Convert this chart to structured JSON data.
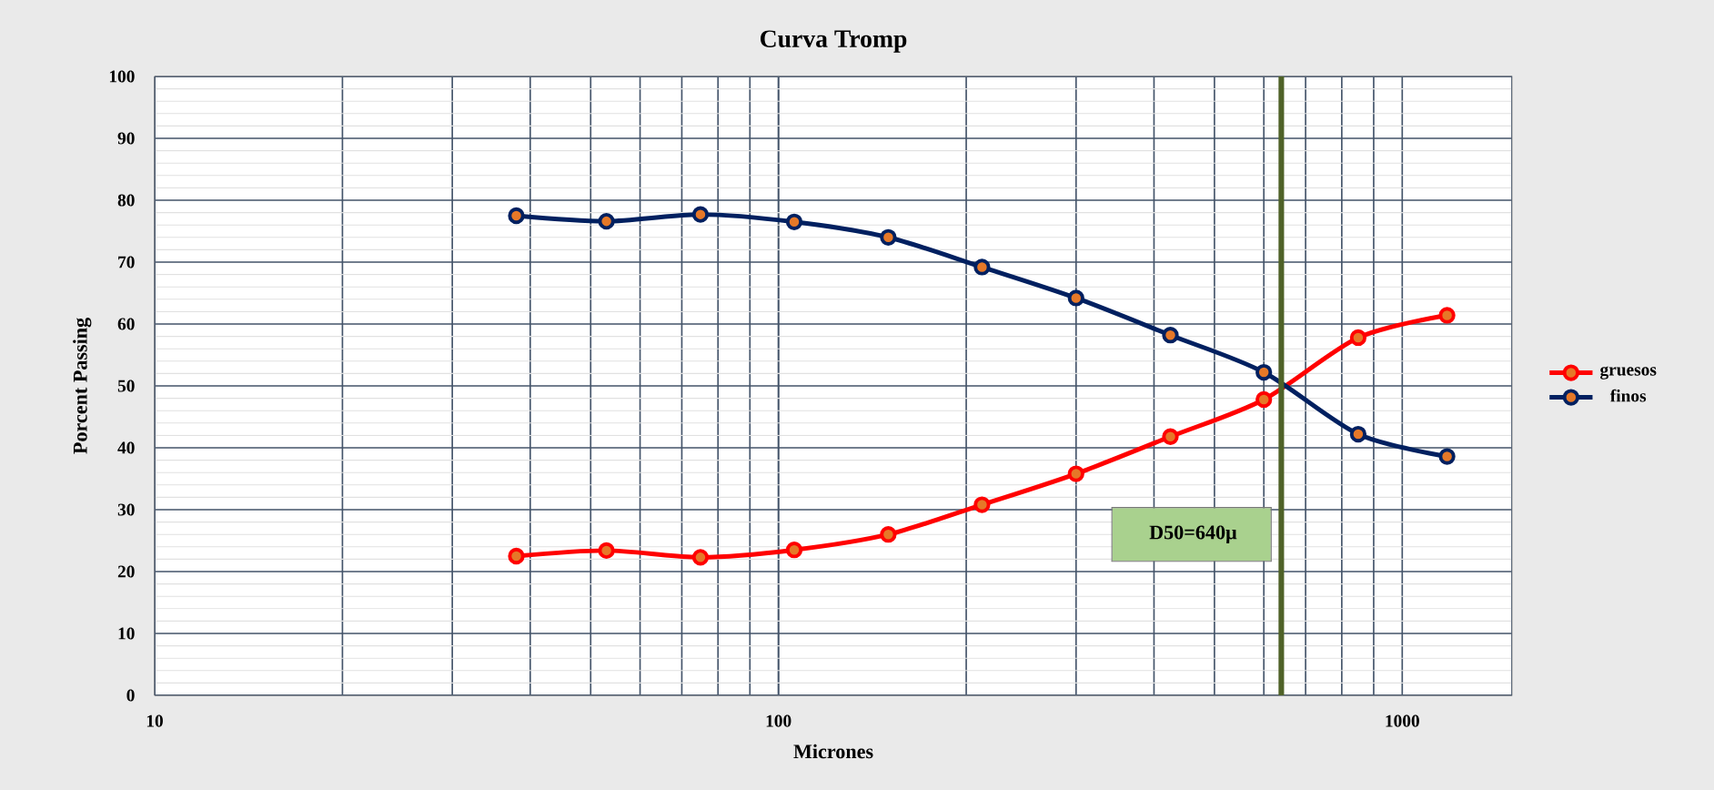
{
  "chart_data": {
    "type": "line",
    "title": "Curva Tromp",
    "xlabel": "Micrones",
    "ylabel": "Porcent Passing",
    "x": [
      38,
      53,
      75,
      106,
      150,
      212,
      300,
      425,
      600,
      850,
      1180
    ],
    "series": [
      {
        "name": "gruesos",
        "color": "#ff0000",
        "values": [
          22.5,
          23.4,
          22.3,
          23.5,
          26,
          30.8,
          35.8,
          41.8,
          47.8,
          57.8,
          61.4
        ]
      },
      {
        "name": "finos",
        "color": "#002060",
        "values": [
          77.5,
          76.6,
          77.7,
          76.5,
          74,
          69.2,
          64.2,
          58.2,
          52.2,
          42.2,
          38.6
        ]
      }
    ],
    "log": "x",
    "xlim": [
      10,
      1500
    ],
    "ylim": [
      0,
      100
    ],
    "xticks": [
      10,
      100,
      1000
    ],
    "yticks": [
      0,
      10,
      20,
      30,
      40,
      50,
      60,
      70,
      80,
      90,
      100
    ],
    "grid": true,
    "legend": "right",
    "marker": "circle",
    "line_style": "solid",
    "ref_lines": [
      {
        "axis": "x",
        "value": 640,
        "label": "D50=640μ",
        "color": "#4f6228"
      }
    ]
  }
}
